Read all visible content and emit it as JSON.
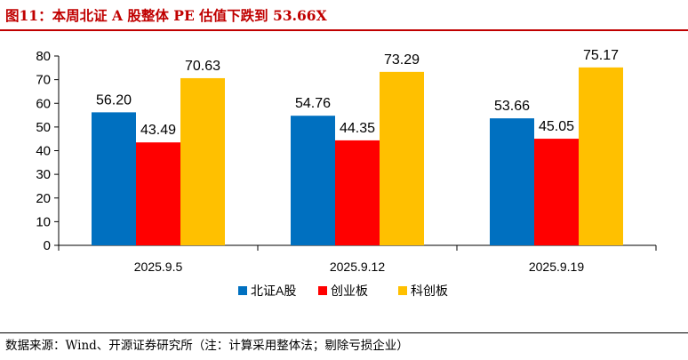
{
  "figure_title": "图11：本周北证 A 股整体 PE 估值下跌到 53.66X",
  "source_note": "数据来源：Wind、开源证券研究所（注：计算采用整体法；剔除亏损企业）",
  "chart_data": {
    "type": "bar",
    "categories": [
      "2025.9.5",
      "2025.9.12",
      "2025.9.19"
    ],
    "series": [
      {
        "name": "北证A股",
        "color": "#0070c0",
        "values": [
          56.2,
          54.76,
          53.66
        ]
      },
      {
        "name": "创业板",
        "color": "#ff0000",
        "values": [
          43.49,
          44.35,
          45.05
        ]
      },
      {
        "name": "科创板",
        "color": "#ffc000",
        "values": [
          70.63,
          73.29,
          75.17
        ]
      }
    ],
    "ylim": [
      0,
      80
    ],
    "yticks": [
      0,
      10,
      20,
      30,
      40,
      50,
      60,
      70,
      80
    ],
    "grid": false,
    "legend_position": "bottom-center",
    "data_label_format": "2 decimals"
  }
}
